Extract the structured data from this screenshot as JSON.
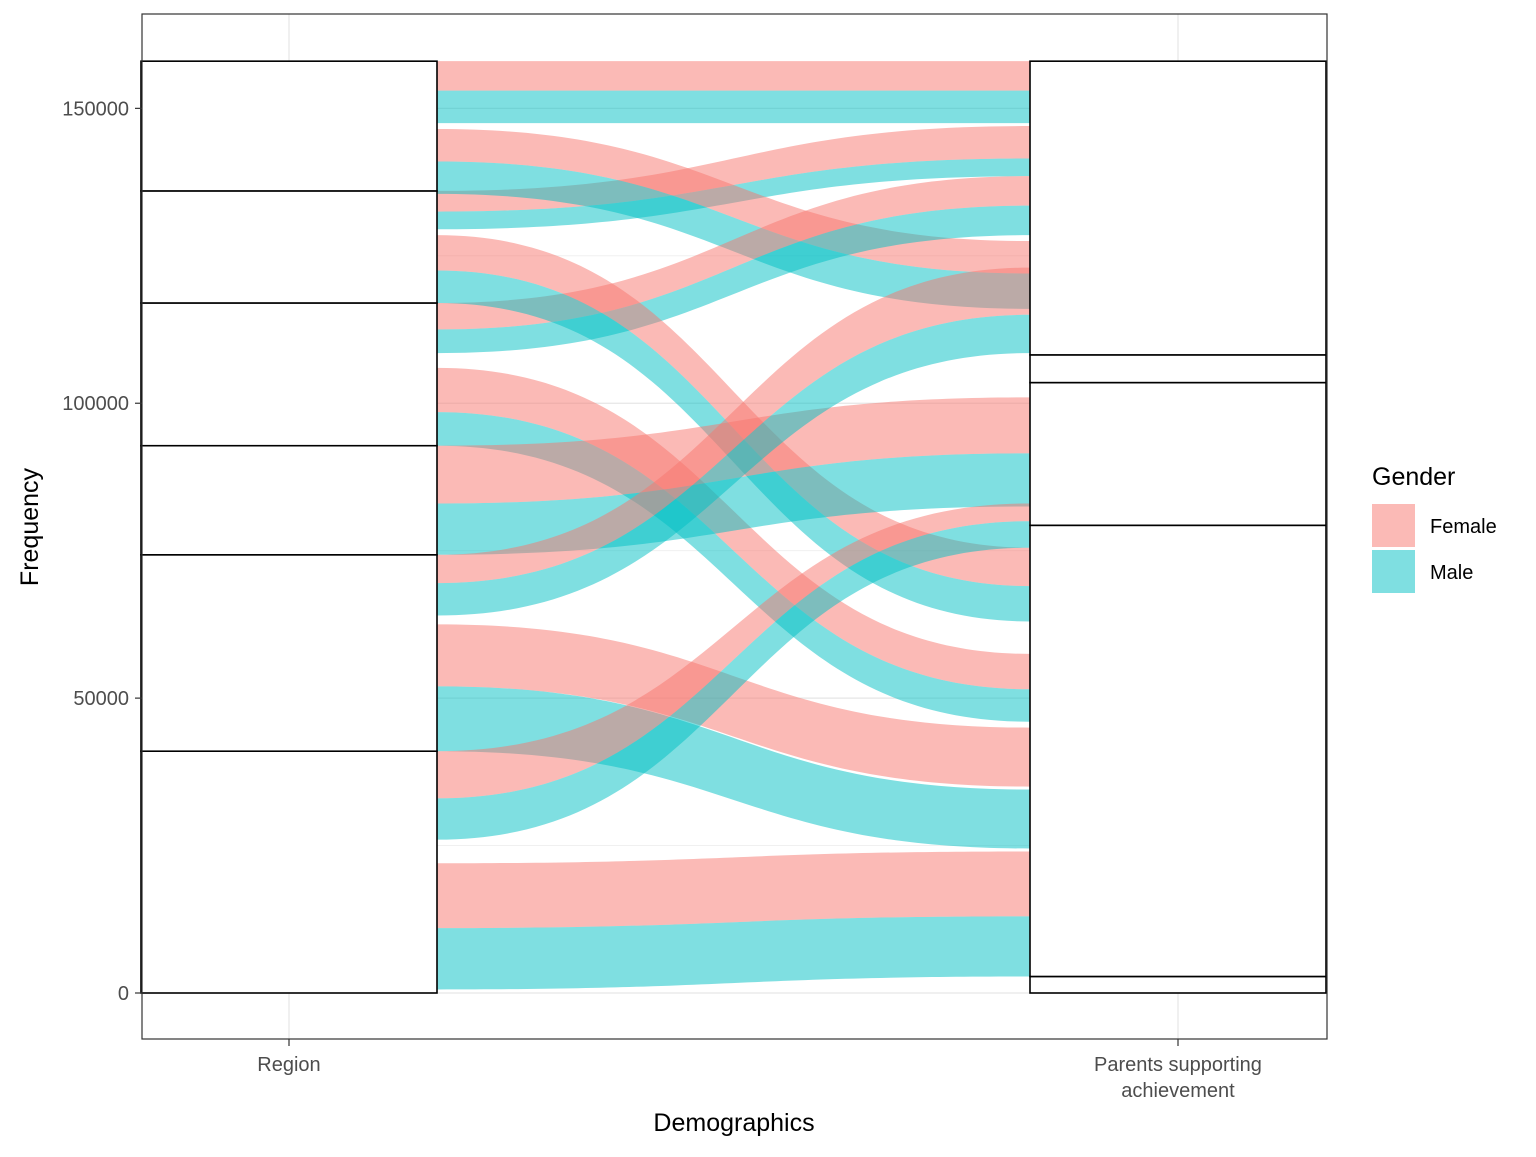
{
  "chart_data": {
    "type": "alluvial",
    "xlabel": "Demographics",
    "ylabel": "Frequency",
    "ylim": [
      -7800,
      166000
    ],
    "yticks": [
      0,
      50000,
      100000,
      150000
    ],
    "ytick_labels": [
      "0",
      "50000",
      "100000",
      "150000"
    ],
    "axes": [
      {
        "label": "Region",
        "strata_boundaries": [
          0,
          41000,
          74300,
          92800,
          117000,
          136000,
          158000
        ]
      },
      {
        "label": "Parents supporting\nachievement",
        "strata_boundaries": [
          0,
          2800,
          79300,
          103500,
          108200,
          158000
        ]
      }
    ],
    "legend": {
      "title": "Gender",
      "position": "right",
      "entries": [
        {
          "label": "Female",
          "color": "#F8766D"
        },
        {
          "label": "Male",
          "color": "#00BFC4"
        }
      ]
    },
    "flows": [
      {
        "gender": "Female",
        "y0": [
          153000,
          158000
        ],
        "y1": [
          153000,
          158000
        ]
      },
      {
        "gender": "Male",
        "y0": [
          147500,
          153000
        ],
        "y1": [
          147500,
          153000
        ]
      },
      {
        "gender": "Female",
        "y0": [
          132500,
          136000
        ],
        "y1": [
          141500,
          147000
        ]
      },
      {
        "gender": "Male",
        "y0": [
          129500,
          132500
        ],
        "y1": [
          138500,
          141500
        ]
      },
      {
        "gender": "Female",
        "y0": [
          141000,
          146500
        ],
        "y1": [
          122000,
          127500
        ]
      },
      {
        "gender": "Male",
        "y0": [
          135500,
          141000
        ],
        "y1": [
          116000,
          122000
        ]
      },
      {
        "gender": "Female",
        "y0": [
          112500,
          117000
        ],
        "y1": [
          133500,
          138500
        ]
      },
      {
        "gender": "Male",
        "y0": [
          108500,
          112500
        ],
        "y1": [
          128500,
          133500
        ]
      },
      {
        "gender": "Female",
        "y0": [
          122500,
          128500
        ],
        "y1": [
          69000,
          75500
        ]
      },
      {
        "gender": "Male",
        "y0": [
          117000,
          122500
        ],
        "y1": [
          63000,
          69000
        ]
      },
      {
        "gender": "Female",
        "y0": [
          98500,
          106000
        ],
        "y1": [
          51500,
          57500
        ]
      },
      {
        "gender": "Male",
        "y0": [
          92800,
          98500
        ],
        "y1": [
          46000,
          51500
        ]
      },
      {
        "gender": "Female",
        "y0": [
          83000,
          92800
        ],
        "y1": [
          91500,
          101000
        ]
      },
      {
        "gender": "Male",
        "y0": [
          74300,
          83000
        ],
        "y1": [
          82500,
          91500
        ]
      },
      {
        "gender": "Female",
        "y0": [
          69500,
          74300
        ],
        "y1": [
          115000,
          123000
        ]
      },
      {
        "gender": "Male",
        "y0": [
          64000,
          69500
        ],
        "y1": [
          108500,
          115000
        ]
      },
      {
        "gender": "Female",
        "y0": [
          52000,
          62500
        ],
        "y1": [
          35000,
          45000
        ]
      },
      {
        "gender": "Male",
        "y0": [
          41000,
          52000
        ],
        "y1": [
          24500,
          34500
        ]
      },
      {
        "gender": "Female",
        "y0": [
          33000,
          41000
        ],
        "y1": [
          80000,
          83000
        ]
      },
      {
        "gender": "Male",
        "y0": [
          26000,
          33000
        ],
        "y1": [
          75500,
          80000
        ]
      },
      {
        "gender": "Female",
        "y0": [
          11000,
          22000
        ],
        "y1": [
          13000,
          24000
        ]
      },
      {
        "gender": "Male",
        "y0": [
          600,
          11000
        ],
        "y1": [
          2800,
          13000
        ]
      }
    ]
  }
}
